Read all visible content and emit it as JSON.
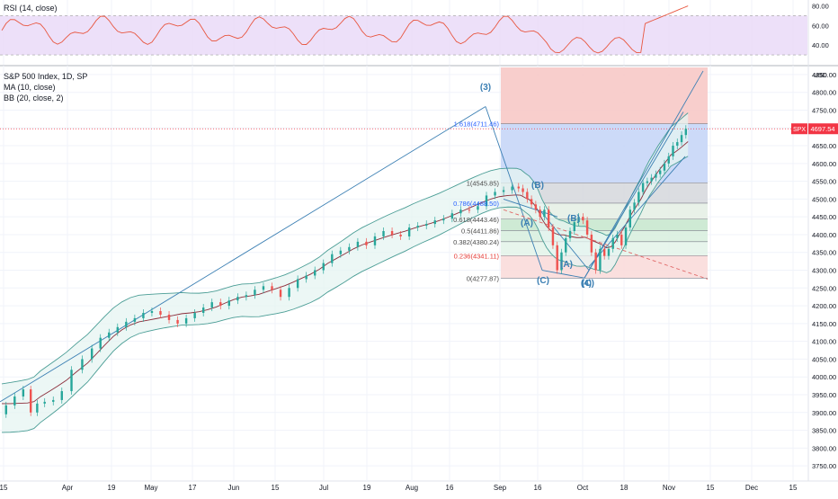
{
  "legend": {
    "rsi": "RSI (14, close)",
    "main": "S&P 500 Index, 1D, SP",
    "ma": "MA (10, close)",
    "bb": "BB (20, close, 2)"
  },
  "price_tag": {
    "symbol": "SPX",
    "value": "4697.54"
  },
  "rsi_axis": {
    "ticks": [
      "80.00",
      "60.00",
      "40.00"
    ],
    "upper": 70,
    "lower": 30
  },
  "unit_label": "USD",
  "wave_labels": [
    "(3)",
    "(B)",
    "(A)",
    "(B)",
    "(A)",
    "(C)",
    "(4)",
    "(C)"
  ],
  "fib_labels": [
    {
      "text": "1.618(4711.46)",
      "value": 4711.46
    },
    {
      "text": "1(4545.85)",
      "value": 4545.85
    },
    {
      "text": "0.786(4488.50)",
      "value": 4488.5
    },
    {
      "text": "0.618(4443.46)",
      "value": 4443.46
    },
    {
      "text": "0.5(4411.86)",
      "value": 4411.86
    },
    {
      "text": "0.382(4380.24)",
      "value": 4380.24
    },
    {
      "text": "0.236(4341.11)",
      "value": 4341.11
    },
    {
      "text": "0(4277.87)",
      "value": 4277.87
    }
  ],
  "colors": {
    "up": "#26a69a",
    "down": "#ef5350",
    "bb": "#4a9d95",
    "ma": "#8b2d3a",
    "rsi": "#e8563f",
    "rsi_band": "#e9d8f7",
    "wave": "#3b7fb3",
    "price": "#f23645",
    "long_zone": "#c7d6f7",
    "stop_zone": "#f7c9c6"
  },
  "chart_data": {
    "type": "candlestick",
    "title": "S&P 500 Index, 1D, SP",
    "x_tick_labels": [
      "15",
      "Apr",
      "19",
      "May",
      "17",
      "Jun",
      "15",
      "Jul",
      "19",
      "Aug",
      "16",
      "Sep",
      "16",
      "Oct",
      "18",
      "Nov",
      "15",
      "Dec",
      "15"
    ],
    "y_tick_labels": [
      "4850.00",
      "4800.00",
      "4750.00",
      "4700.00",
      "4650.00",
      "4600.00",
      "4550.00",
      "4500.00",
      "4450.00",
      "4400.00",
      "4350.00",
      "4300.00",
      "4250.00",
      "4200.00",
      "4150.00",
      "4100.00",
      "4050.00",
      "4000.00",
      "3950.00",
      "3900.00",
      "3850.00",
      "3800.00",
      "3750.00"
    ],
    "ylim": [
      3720,
      4870
    ],
    "last_price": 4697.54,
    "ohlc_path": [
      [
        0,
        3895
      ],
      [
        4,
        3920
      ],
      [
        8,
        3945
      ],
      [
        12,
        3965
      ],
      [
        15,
        3900
      ],
      [
        18,
        3925
      ],
      [
        22,
        3930
      ],
      [
        26,
        3935
      ],
      [
        30,
        3960
      ],
      [
        35,
        4020
      ],
      [
        40,
        4050
      ],
      [
        44,
        4080
      ],
      [
        48,
        4110
      ],
      [
        52,
        4125
      ],
      [
        56,
        4140
      ],
      [
        60,
        4155
      ],
      [
        64,
        4165
      ],
      [
        68,
        4180
      ],
      [
        72,
        4185
      ],
      [
        76,
        4175
      ],
      [
        80,
        4160
      ],
      [
        84,
        4150
      ],
      [
        88,
        4165
      ],
      [
        92,
        4180
      ],
      [
        96,
        4195
      ],
      [
        100,
        4210
      ],
      [
        104,
        4200
      ],
      [
        108,
        4215
      ],
      [
        112,
        4225
      ],
      [
        116,
        4230
      ],
      [
        120,
        4245
      ],
      [
        124,
        4255
      ],
      [
        128,
        4245
      ],
      [
        132,
        4225
      ],
      [
        136,
        4250
      ],
      [
        140,
        4275
      ],
      [
        144,
        4285
      ],
      [
        148,
        4300
      ],
      [
        152,
        4320
      ],
      [
        156,
        4345
      ],
      [
        160,
        4355
      ],
      [
        164,
        4365
      ],
      [
        168,
        4380
      ],
      [
        172,
        4370
      ],
      [
        176,
        4395
      ],
      [
        180,
        4410
      ],
      [
        184,
        4400
      ],
      [
        188,
        4395
      ],
      [
        192,
        4420
      ],
      [
        196,
        4425
      ],
      [
        200,
        4430
      ],
      [
        204,
        4440
      ],
      [
        208,
        4445
      ],
      [
        212,
        4460
      ],
      [
        216,
        4470
      ],
      [
        220,
        4470
      ],
      [
        224,
        4480
      ],
      [
        228,
        4510
      ],
      [
        232,
        4520
      ],
      [
        236,
        4525
      ],
      [
        240,
        4535
      ],
      [
        242,
        4530
      ],
      [
        244,
        4520
      ],
      [
        246,
        4500
      ],
      [
        248,
        4485
      ],
      [
        250,
        4470
      ],
      [
        252,
        4450
      ],
      [
        254,
        4470
      ],
      [
        256,
        4420
      ],
      [
        258,
        4370
      ],
      [
        260,
        4300
      ],
      [
        262,
        4350
      ],
      [
        264,
        4390
      ],
      [
        266,
        4410
      ],
      [
        268,
        4435
      ],
      [
        270,
        4450
      ],
      [
        272,
        4440
      ],
      [
        274,
        4400
      ],
      [
        276,
        4350
      ],
      [
        278,
        4300
      ],
      [
        280,
        4360
      ],
      [
        282,
        4340
      ],
      [
        284,
        4360
      ],
      [
        286,
        4390
      ],
      [
        288,
        4400
      ],
      [
        290,
        4370
      ],
      [
        292,
        4420
      ],
      [
        294,
        4470
      ],
      [
        296,
        4490
      ],
      [
        298,
        4520
      ],
      [
        300,
        4545
      ],
      [
        302,
        4550
      ],
      [
        304,
        4560
      ],
      [
        306,
        4570
      ],
      [
        308,
        4580
      ],
      [
        310,
        4600
      ],
      [
        312,
        4620
      ],
      [
        314,
        4650
      ],
      [
        316,
        4660
      ],
      [
        318,
        4680
      ],
      [
        320,
        4697.54
      ]
    ]
  }
}
